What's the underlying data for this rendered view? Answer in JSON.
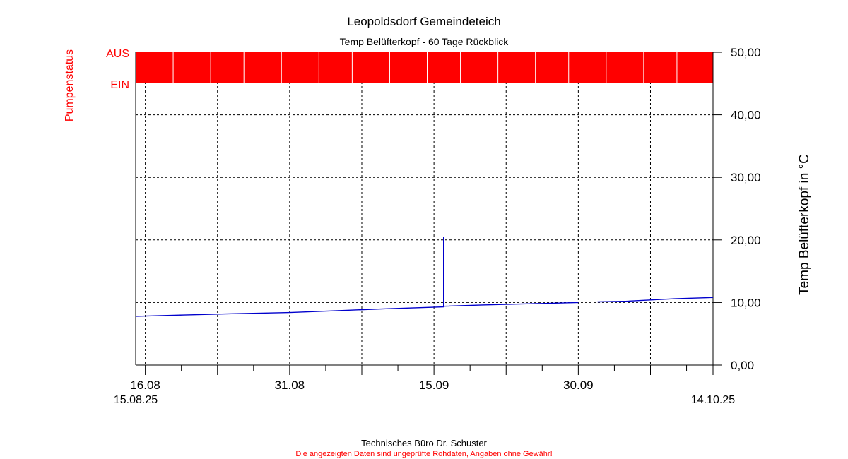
{
  "title": "Leopoldsdorf Gemeindeteich",
  "subtitle": "Temp Belüfterkopf - 60 Tage Rückblick",
  "footer": {
    "company": "Technisches Büro Dr. Schuster",
    "disclaimer": "Die angezeigten Daten sind ungeprüfte Rohdaten, Angaben ohne Gewähr!"
  },
  "colors": {
    "pump": "#ff0000",
    "temp": "#0000cc",
    "grid": "#000000",
    "disclaimer": "#ff0000"
  },
  "chart_data": {
    "type": "line",
    "x_range": [
      "2025-08-15",
      "2025-10-14"
    ],
    "y_range": [
      0,
      50
    ],
    "y_ticks": [
      "0,00",
      "10,00",
      "20,00",
      "30,00",
      "40,00",
      "50,00"
    ],
    "y_tick_values": [
      0,
      10,
      20,
      30,
      40,
      50
    ],
    "ylabel_right": "Temp Belüfterkopf in °C",
    "ylabel_left": "Pumpenstatus",
    "pump_states": [
      "AUS",
      "EIN"
    ],
    "x_tick_labels": [
      {
        "date": "2025-08-16",
        "label": "16.08"
      },
      {
        "date": "2025-08-31",
        "label": "31.08"
      },
      {
        "date": "2025-09-15",
        "label": "15.09"
      },
      {
        "date": "2025-09-30",
        "label": "30.09"
      }
    ],
    "x_start_label": "15.08.25",
    "x_end_label": "14.10.25",
    "grid": true,
    "series": [
      {
        "type": "line",
        "points": [
          [
            "2025-08-15",
            7.8
          ],
          [
            "2025-08-20",
            8.0
          ],
          [
            "2025-08-25",
            8.2
          ],
          [
            "2025-08-31",
            8.4
          ],
          [
            "2025-09-05",
            8.7
          ],
          [
            "2025-09-10",
            9.0
          ],
          [
            "2025-09-16",
            9.3
          ],
          [
            "2025-09-16",
            20.5
          ],
          [
            "2025-09-16",
            9.4
          ],
          [
            "2025-09-20",
            9.6
          ],
          [
            "2025-09-25",
            9.8
          ],
          [
            "2025-09-30",
            10.0
          ],
          null,
          [
            "2025-10-02",
            10.1
          ],
          [
            "2025-10-05",
            10.2
          ],
          [
            "2025-10-10",
            10.6
          ],
          [
            "2025-10-14",
            10.8
          ]
        ]
      },
      {
        "type": "state_band",
        "state": "AUS",
        "intervals": [
          [
            "2025-08-15",
            "2025-10-14"
          ]
        ]
      }
    ]
  }
}
